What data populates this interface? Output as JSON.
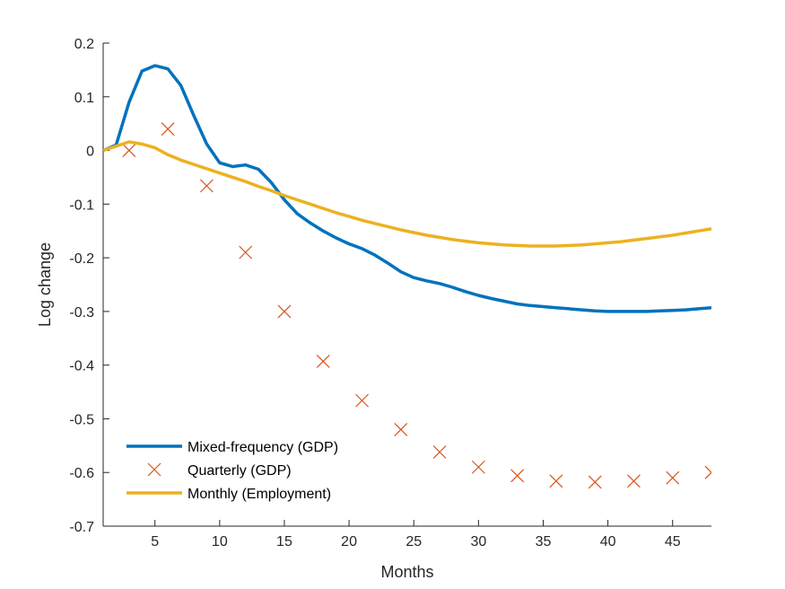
{
  "chart_data": {
    "type": "line",
    "title": "",
    "xlabel": "Months",
    "ylabel": "Log change",
    "xlim": [
      1,
      48
    ],
    "ylim": [
      -0.7,
      0.2
    ],
    "xticks": [
      5,
      10,
      15,
      20,
      25,
      30,
      35,
      40,
      45
    ],
    "yticks": [
      -0.7,
      -0.6,
      -0.5,
      -0.4,
      -0.3,
      -0.2,
      -0.1,
      0,
      0.1,
      0.2
    ],
    "xtick_labels": [
      "5",
      "10",
      "15",
      "20",
      "25",
      "30",
      "35",
      "40",
      "45"
    ],
    "ytick_labels": [
      "-0.7",
      "-0.6",
      "-0.5",
      "-0.4",
      "-0.3",
      "-0.2",
      "-0.1",
      "0",
      "0.1",
      "0.2"
    ],
    "grid": false,
    "legend_position": "bottom-left",
    "series": [
      {
        "name": "Mixed-frequency (GDP)",
        "style": "line",
        "color": "#0072BD",
        "x": [
          1,
          2,
          3,
          4,
          5,
          6,
          7,
          8,
          9,
          10,
          11,
          12,
          13,
          14,
          15,
          16,
          17,
          18,
          19,
          20,
          21,
          22,
          23,
          24,
          25,
          26,
          27,
          28,
          29,
          30,
          31,
          32,
          33,
          34,
          35,
          36,
          37,
          38,
          39,
          40,
          41,
          42,
          43,
          44,
          45,
          46,
          47,
          48
        ],
        "y": [
          0.0,
          0.01,
          0.09,
          0.148,
          0.158,
          0.152,
          0.121,
          0.065,
          0.012,
          -0.023,
          -0.03,
          -0.027,
          -0.035,
          -0.06,
          -0.092,
          -0.118,
          -0.135,
          -0.15,
          -0.163,
          -0.174,
          -0.183,
          -0.195,
          -0.21,
          -0.226,
          -0.237,
          -0.243,
          -0.248,
          -0.255,
          -0.263,
          -0.27,
          -0.276,
          -0.281,
          -0.286,
          -0.289,
          -0.291,
          -0.293,
          -0.295,
          -0.297,
          -0.299,
          -0.3,
          -0.3,
          -0.3,
          -0.3,
          -0.299,
          -0.298,
          -0.297,
          -0.295,
          -0.293
        ]
      },
      {
        "name": "Quarterly (GDP)",
        "style": "marker-x",
        "color": "#D95319",
        "x": [
          3,
          6,
          9,
          12,
          15,
          18,
          21,
          24,
          27,
          30,
          33,
          36,
          39,
          42,
          45,
          48
        ],
        "y": [
          0.0,
          0.04,
          -0.066,
          -0.19,
          -0.3,
          -0.393,
          -0.466,
          -0.52,
          -0.562,
          -0.59,
          -0.606,
          -0.616,
          -0.618,
          -0.616,
          -0.61,
          -0.6
        ]
      },
      {
        "name": "Monthly (Employment)",
        "style": "line",
        "color": "#EDB120",
        "x": [
          1,
          2,
          3,
          4,
          5,
          6,
          7,
          8,
          9,
          10,
          11,
          12,
          13,
          14,
          15,
          16,
          17,
          18,
          19,
          20,
          21,
          22,
          23,
          24,
          25,
          26,
          27,
          28,
          29,
          30,
          31,
          32,
          33,
          34,
          35,
          36,
          37,
          38,
          39,
          40,
          41,
          42,
          43,
          44,
          45,
          46,
          47,
          48
        ],
        "y": [
          0.0,
          0.008,
          0.016,
          0.012,
          0.005,
          -0.008,
          -0.018,
          -0.026,
          -0.034,
          -0.042,
          -0.05,
          -0.058,
          -0.067,
          -0.075,
          -0.084,
          -0.092,
          -0.1,
          -0.108,
          -0.116,
          -0.123,
          -0.13,
          -0.136,
          -0.142,
          -0.148,
          -0.153,
          -0.158,
          -0.162,
          -0.166,
          -0.169,
          -0.172,
          -0.174,
          -0.176,
          -0.177,
          -0.178,
          -0.178,
          -0.178,
          -0.177,
          -0.176,
          -0.174,
          -0.172,
          -0.17,
          -0.167,
          -0.164,
          -0.161,
          -0.158,
          -0.154,
          -0.15,
          -0.146
        ]
      }
    ]
  }
}
